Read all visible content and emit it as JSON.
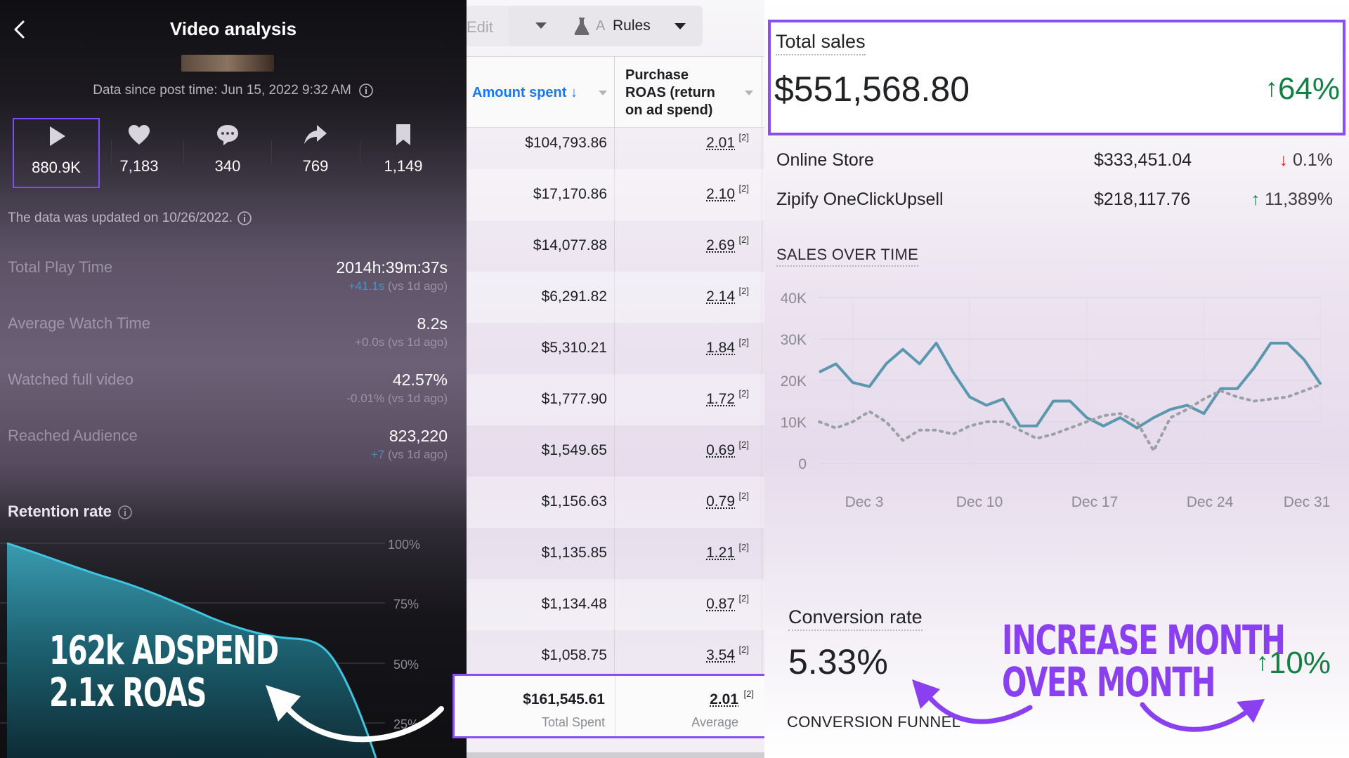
{
  "left": {
    "title": "Video analysis",
    "data_since": "Data since post time: Jun 15, 2022 9:32 AM",
    "stats": [
      {
        "icon": "play-icon",
        "value": "880.9K"
      },
      {
        "icon": "heart-icon",
        "value": "7,183"
      },
      {
        "icon": "comment-icon",
        "value": "340"
      },
      {
        "icon": "share-icon",
        "value": "769"
      },
      {
        "icon": "bookmark-icon",
        "value": "1,149"
      }
    ],
    "updated": "The data was updated on 10/26/2022.",
    "metrics": [
      {
        "label": "Total Play Time",
        "value": "2014h:39m:37s",
        "delta_pos": "+41.1s",
        "delta_rest": " (vs 1d ago)"
      },
      {
        "label": "Average Watch Time",
        "value": "8.2s",
        "delta_pos": "",
        "delta_rest": "+0.0s (vs 1d ago)"
      },
      {
        "label": "Watched full video",
        "value": "42.57%",
        "delta_pos": "",
        "delta_rest": "-0.01% (vs 1d ago)"
      },
      {
        "label": "Reached Audience",
        "value": "823,220",
        "delta_pos": "+7",
        "delta_rest": " (vs 1d ago)"
      }
    ],
    "retention_title": "Retention rate",
    "retention_ticks": [
      "100%",
      "75%",
      "50%",
      "25%"
    ],
    "overlay_line1": "162k ADSPEND",
    "overlay_line2": "2.1x ROAS",
    "accent": "#7c4dff"
  },
  "middle": {
    "toolbar": {
      "edit_label": "Edit",
      "rules_prefix": "A",
      "rules_label": "Rules"
    },
    "headers": {
      "amount": "Amount spent",
      "roas": "Purchase ROAS (return on ad spend)"
    },
    "rows": [
      {
        "amount": "$104,793.86",
        "roas": "2.01",
        "note": "[2]"
      },
      {
        "amount": "$17,170.86",
        "roas": "2.10",
        "note": "[2]"
      },
      {
        "amount": "$14,077.88",
        "roas": "2.69",
        "note": "[2]"
      },
      {
        "amount": "$6,291.82",
        "roas": "2.14",
        "note": "[2]"
      },
      {
        "amount": "$5,310.21",
        "roas": "1.84",
        "note": "[2]"
      },
      {
        "amount": "$1,777.90",
        "roas": "1.72",
        "note": "[2]"
      },
      {
        "amount": "$1,549.65",
        "roas": "0.69",
        "note": "[2]"
      },
      {
        "amount": "$1,156.63",
        "roas": "0.79",
        "note": "[2]"
      },
      {
        "amount": "$1,135.85",
        "roas": "1.21",
        "note": "[2]"
      },
      {
        "amount": "$1,134.48",
        "roas": "0.87",
        "note": "[2]"
      },
      {
        "amount": "$1,058.75",
        "roas": "3.54",
        "note": "[2]"
      }
    ],
    "total": {
      "amount": "$161,545.61",
      "amount_label": "Total Spent",
      "roas": "2.01",
      "roas_note": "[2]",
      "roas_label": "Average"
    },
    "header_color": "#1877f2"
  },
  "right": {
    "total_sales": {
      "title": "Total sales",
      "value": "$551,568.80",
      "change": "64%"
    },
    "channels": [
      {
        "name": "Online Store",
        "value": "$333,451.04",
        "change": "0.1%",
        "direction": "down"
      },
      {
        "name": "Zipify OneClickUpsell",
        "value": "$218,117.76",
        "change": "11,389%",
        "direction": "up"
      }
    ],
    "sales_over_time_title": "SALES OVER TIME",
    "conversion": {
      "title": "Conversion rate",
      "value": "5.33%",
      "change": "10%"
    },
    "funnel_title": "CONVERSION FUNNEL",
    "callout_line1": "INCREASE MONTH",
    "callout_line2": "OVER MONTH",
    "positive_color": "#108043",
    "negative_color": "#d82c0d",
    "callout_color": "#8a3ff0"
  },
  "chart_data": {
    "type": "line",
    "title": "SALES OVER TIME",
    "x_ticks": [
      "Dec 3",
      "Dec 10",
      "Dec 17",
      "Dec 24",
      "Dec 31"
    ],
    "y_ticks": [
      "40K",
      "30K",
      "20K",
      "10K",
      "0"
    ],
    "ylim": [
      0,
      40000
    ],
    "x": [
      1,
      2,
      3,
      4,
      5,
      6,
      7,
      8,
      9,
      10,
      11,
      12,
      13,
      14,
      15,
      16,
      17,
      18,
      19,
      20,
      21,
      22,
      23,
      24,
      25,
      26,
      27,
      28,
      29,
      30,
      31
    ],
    "series": [
      {
        "style": "solid",
        "color": "#5b97ad",
        "values": [
          22000,
          24000,
          19500,
          18500,
          24000,
          27500,
          24000,
          29000,
          22000,
          16000,
          14000,
          15500,
          9000,
          9000,
          15000,
          15000,
          11000,
          9000,
          11000,
          8500,
          11000,
          13000,
          14000,
          12000,
          18000,
          18000,
          23000,
          29000,
          29000,
          25000,
          19000
        ]
      },
      {
        "style": "dotted",
        "color": "#9aa0a6",
        "values": [
          10000,
          8500,
          10000,
          12500,
          10000,
          5500,
          8000,
          8000,
          7000,
          9000,
          10000,
          10000,
          8000,
          6000,
          7000,
          8500,
          10000,
          11500,
          12000,
          10000,
          3000,
          11000,
          13000,
          15500,
          17500,
          16000,
          15000,
          15500,
          16000,
          17500,
          19000
        ]
      }
    ]
  }
}
